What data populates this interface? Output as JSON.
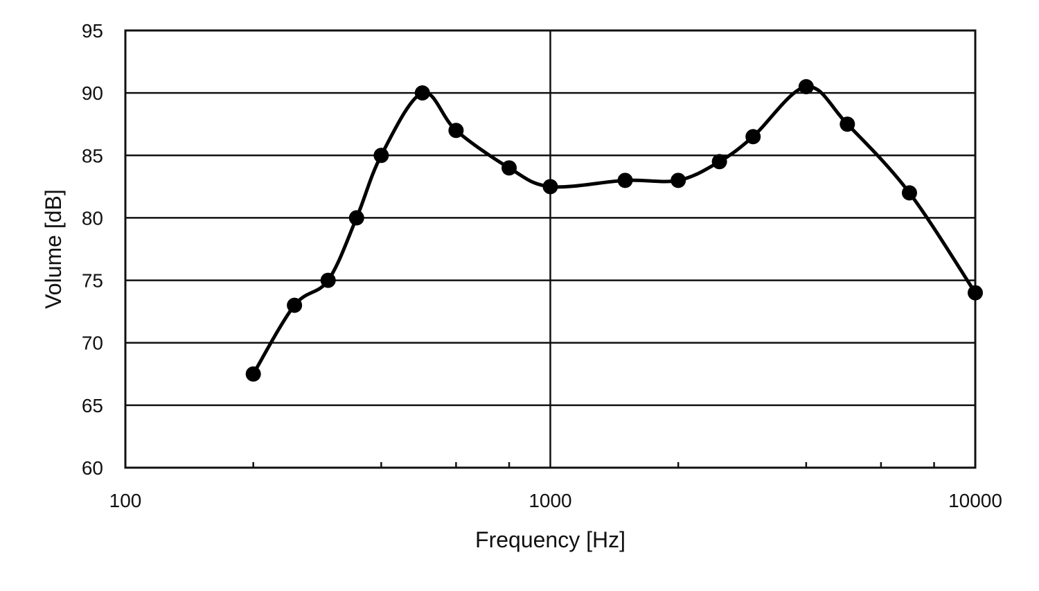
{
  "chart_data": {
    "type": "line",
    "title": "",
    "xlabel": "Frequency [Hz]",
    "ylabel": "Volume [dB]",
    "x_scale": "log",
    "xlim": [
      100,
      10000
    ],
    "ylim": [
      60,
      95
    ],
    "x_ticks": [
      "100",
      "1000",
      "10000"
    ],
    "y_ticks": [
      "60",
      "65",
      "70",
      "75",
      "80",
      "85",
      "90",
      "95"
    ],
    "grid": true,
    "legend": "none",
    "series": [
      {
        "color": "#000000",
        "marker": "circle",
        "smooth": true,
        "x": [
          200,
          250,
          300,
          350,
          400,
          500,
          600,
          800,
          1000,
          1500,
          2000,
          2500,
          3000,
          4000,
          5000,
          7000,
          10000
        ],
        "y": [
          67.5,
          73,
          75,
          80,
          85,
          90,
          87,
          84,
          82.5,
          83,
          83,
          84.5,
          86.5,
          90.5,
          87.5,
          82,
          74
        ]
      }
    ]
  }
}
